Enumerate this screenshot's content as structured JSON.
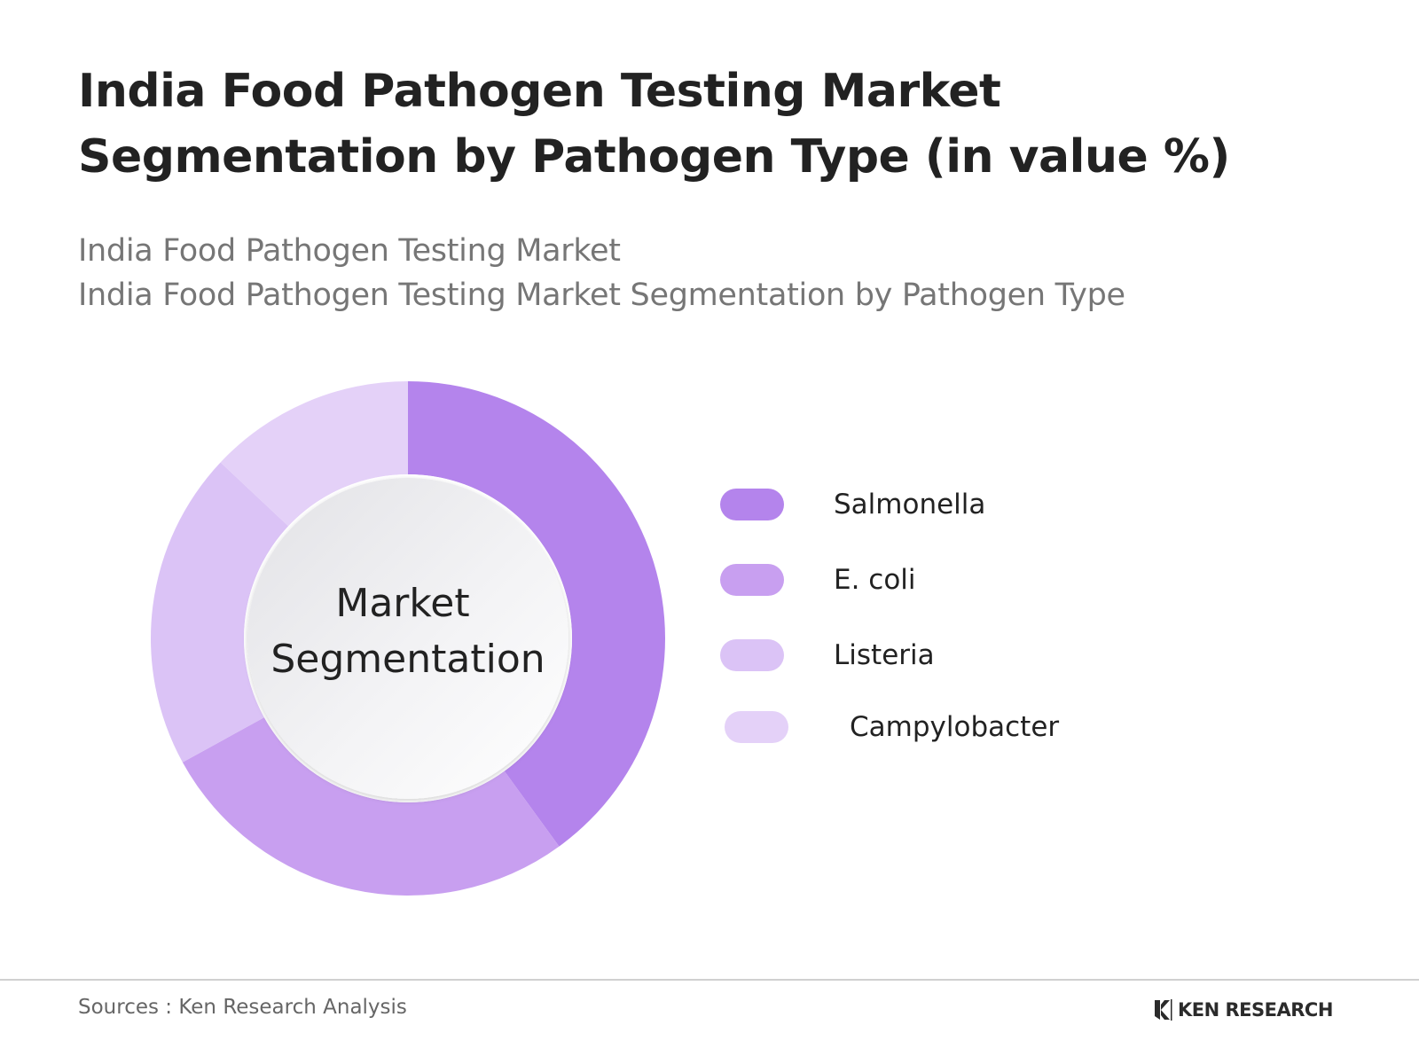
{
  "title": "India Food Pathogen Testing Market Segmentation by Pathogen Type (in value %)",
  "subtitle_lines": [
    "India Food Pathogen Testing Market",
    "India Food Pathogen Testing Market Segmentation by Pathogen Type"
  ],
  "chart_data": {
    "type": "pie",
    "variant": "donut",
    "center_label": [
      "Market",
      "Segmentation"
    ],
    "categories": [
      "Salmonella",
      "E. coli",
      "Listeria",
      "Campylobacter"
    ],
    "values": [
      40,
      27,
      20,
      13
    ],
    "colors": [
      "#b484ec",
      "#c89ff0",
      "#dbc3f6",
      "#e4d1f8"
    ],
    "legend": "right",
    "data_labels": false
  },
  "footer": {
    "sources": "Sources : Ken Research Analysis",
    "logo_text": "KEN RESEARCH"
  }
}
